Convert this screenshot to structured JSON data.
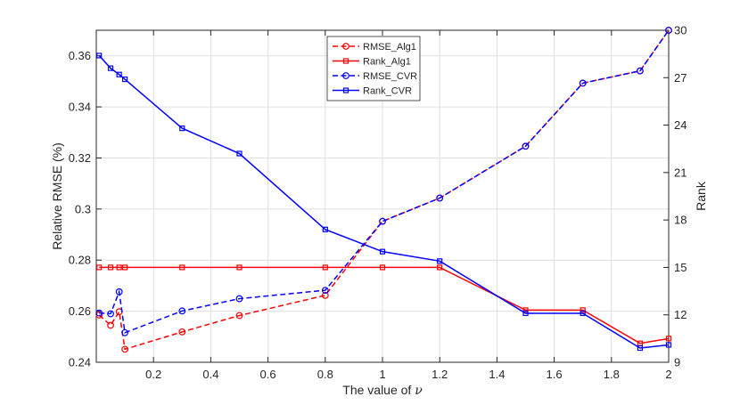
{
  "chart_data": {
    "type": "line",
    "xlabel": "The value of ",
    "xlabel_symbol": "ν",
    "ylabel_left": "Relative RMSE (%)",
    "ylabel_right": "Rank",
    "xlim": [
      0,
      2
    ],
    "ylim_left": [
      0.24,
      0.37
    ],
    "ylim_right": [
      9,
      30
    ],
    "x_ticks": [
      0.2,
      0.4,
      0.6,
      0.8,
      1,
      1.2,
      1.4,
      1.6,
      1.8,
      2
    ],
    "x_tick_labels": [
      "0.2",
      "0.4",
      "0.6",
      "0.8",
      "1",
      "1.2",
      "1.4",
      "1.6",
      "1.8",
      "2"
    ],
    "y_left_ticks": [
      0.24,
      0.26,
      0.28,
      0.3,
      0.32,
      0.34,
      0.36
    ],
    "y_left_tick_labels": [
      "0.24",
      "0.26",
      "0.28",
      "0.3",
      "0.32",
      "0.34",
      "0.36"
    ],
    "y_right_ticks": [
      9,
      12,
      15,
      18,
      21,
      24,
      27,
      30
    ],
    "y_right_tick_labels": [
      "9",
      "12",
      "15",
      "18",
      "21",
      "24",
      "27",
      "30"
    ],
    "grid": true,
    "legend_position": "top-center",
    "x": [
      0.01,
      0.05,
      0.08,
      0.1,
      0.3,
      0.5,
      0.8,
      1.0,
      1.2,
      1.5,
      1.7,
      1.9,
      2.0
    ],
    "series": [
      {
        "name": "RMSE_Alg1",
        "axis": "left",
        "color": "#ff0000",
        "style": "dashed",
        "marker": "circle",
        "values": [
          0.2585,
          0.2545,
          0.2598,
          0.2451,
          0.2519,
          0.2583,
          0.2662,
          0.2952,
          0.3043,
          0.3246,
          0.3493,
          0.3541,
          0.37
        ]
      },
      {
        "name": "Rank_Alg1",
        "axis": "right",
        "color": "#ff0000",
        "style": "solid",
        "marker": "square",
        "values": [
          15,
          15,
          15,
          15,
          15,
          15,
          15,
          15,
          15,
          12.3,
          12.3,
          10.2,
          10.5
        ]
      },
      {
        "name": "RMSE_CVR",
        "axis": "left",
        "color": "#0000ff",
        "style": "dashed",
        "marker": "circle",
        "values": [
          0.2593,
          0.259,
          0.2676,
          0.2516,
          0.2601,
          0.2649,
          0.2682,
          0.2952,
          0.3043,
          0.3246,
          0.3493,
          0.3541,
          0.37
        ]
      },
      {
        "name": "Rank_CVR",
        "axis": "right",
        "color": "#0000ff",
        "style": "solid",
        "marker": "square",
        "values": [
          28.4,
          27.6,
          27.2,
          26.9,
          23.8,
          22.2,
          17.4,
          16.0,
          15.4,
          12.1,
          12.1,
          9.9,
          10.1
        ]
      }
    ]
  }
}
